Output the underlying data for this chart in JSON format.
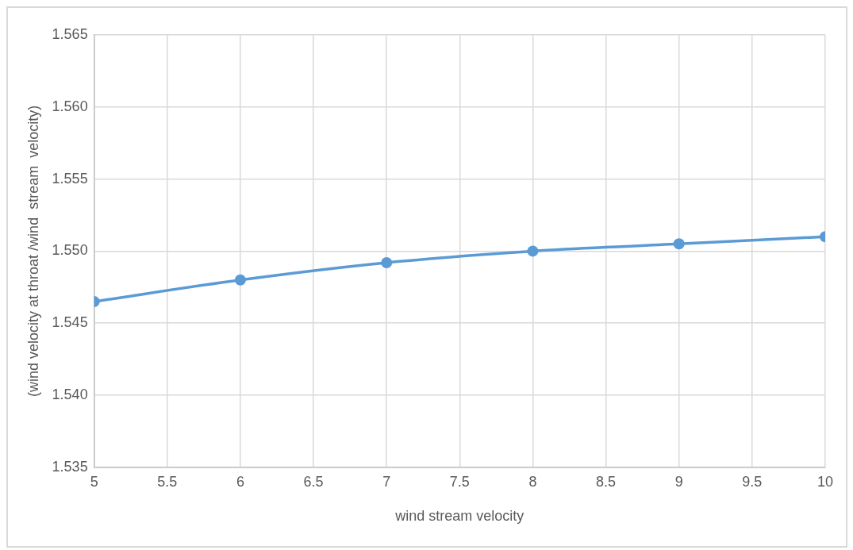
{
  "chart_data": {
    "type": "line",
    "xlabel": "wind stream velocity",
    "ylabel": "(wind velocity at throat /wind  stream  velocity)",
    "x": [
      5,
      6,
      7,
      8,
      9,
      10
    ],
    "series": [
      {
        "color": "#5b9bd5",
        "values": [
          1.5465,
          1.548,
          1.5492,
          1.55,
          1.5505,
          1.551
        ]
      }
    ],
    "xlim": [
      5,
      10
    ],
    "xticks": [
      5,
      5.5,
      6,
      6.5,
      7,
      7.5,
      8,
      8.5,
      9,
      9.5,
      10
    ],
    "ylim": [
      1.535,
      1.565
    ],
    "yticks": [
      {
        "value": 1.535,
        "label": "1.535"
      },
      {
        "value": 1.54,
        "label": "1.540"
      },
      {
        "value": 1.545,
        "label": "1.545"
      },
      {
        "value": 1.55,
        "label": "1.550"
      },
      {
        "value": 1.555,
        "label": "1.555"
      },
      {
        "value": 1.56,
        "label": "1.560"
      },
      {
        "value": 1.565,
        "label": "1.565"
      }
    ],
    "grid": true,
    "legend": false,
    "marker": "circle",
    "line_style": "solid"
  }
}
